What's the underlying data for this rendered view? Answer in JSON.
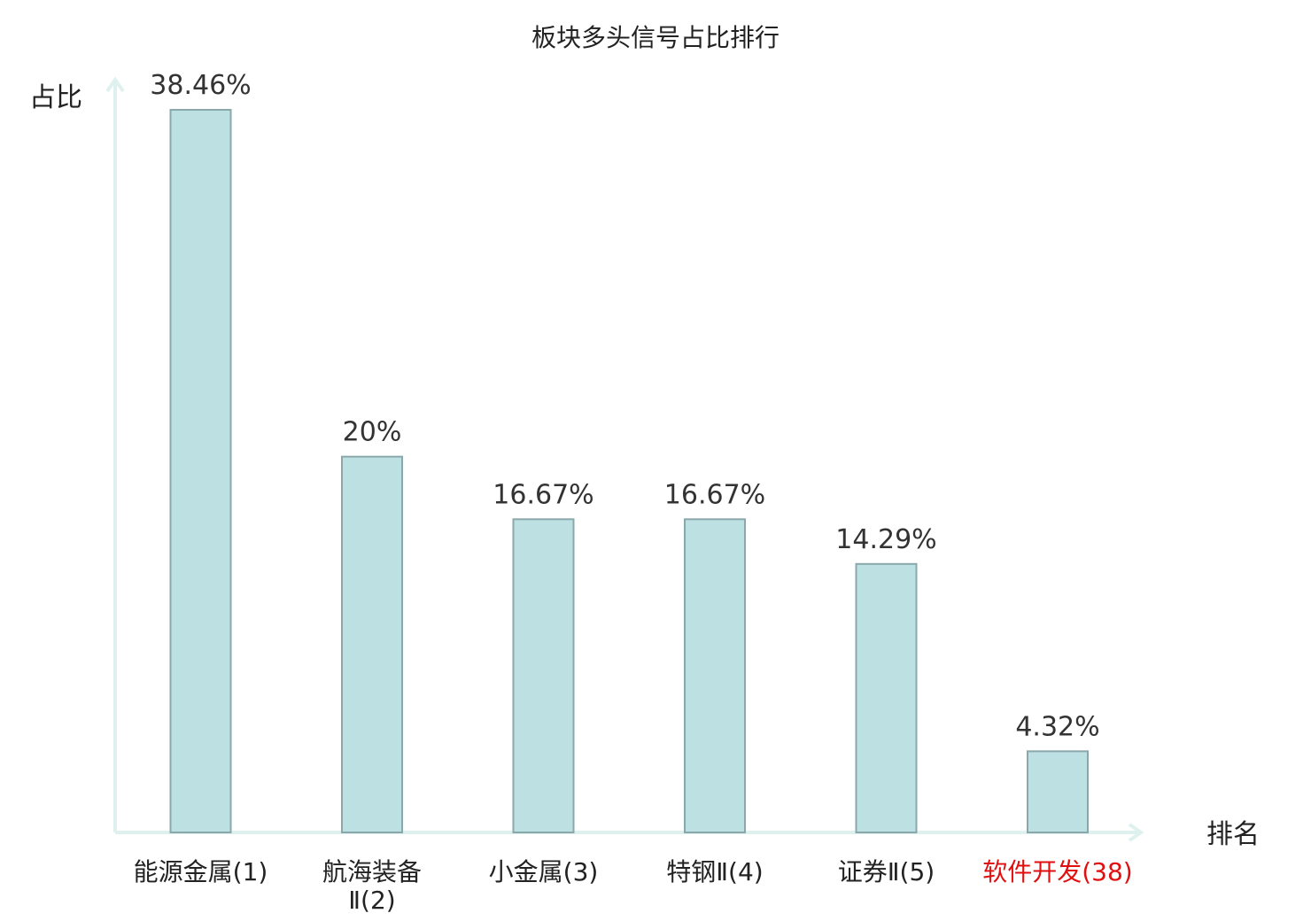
{
  "chart_data": {
    "type": "bar",
    "title": "板块多头信号占比排行",
    "ylabel": "占比",
    "xlabel": "排名",
    "categories": [
      "能源金属(1)",
      "航海装备Ⅱ(2)",
      "小金属(3)",
      "特钢Ⅱ(4)",
      "证券Ⅱ(5)",
      "软件开发(38)"
    ],
    "tick_lines": [
      [
        "能源金属(1)"
      ],
      [
        "航海装备",
        "Ⅱ(2)"
      ],
      [
        "小金属(3)"
      ],
      [
        "特钢Ⅱ(4)"
      ],
      [
        "证券Ⅱ(5)"
      ],
      [
        "软件开发(38)"
      ]
    ],
    "values": [
      38.46,
      20,
      16.67,
      16.67,
      14.29,
      4.32
    ],
    "value_labels": [
      "38.46%",
      "20%",
      "16.67%",
      "16.67%",
      "14.29%",
      "4.32%"
    ],
    "highlight_index": 5,
    "ylim": [
      0,
      38.46
    ],
    "grid": false,
    "colors": {
      "bar_fill": "#bde0e3",
      "bar_stroke": "#8aa8ab",
      "axis": "#dff1ee",
      "text": "#222222",
      "highlight_text": "#e01010"
    }
  }
}
